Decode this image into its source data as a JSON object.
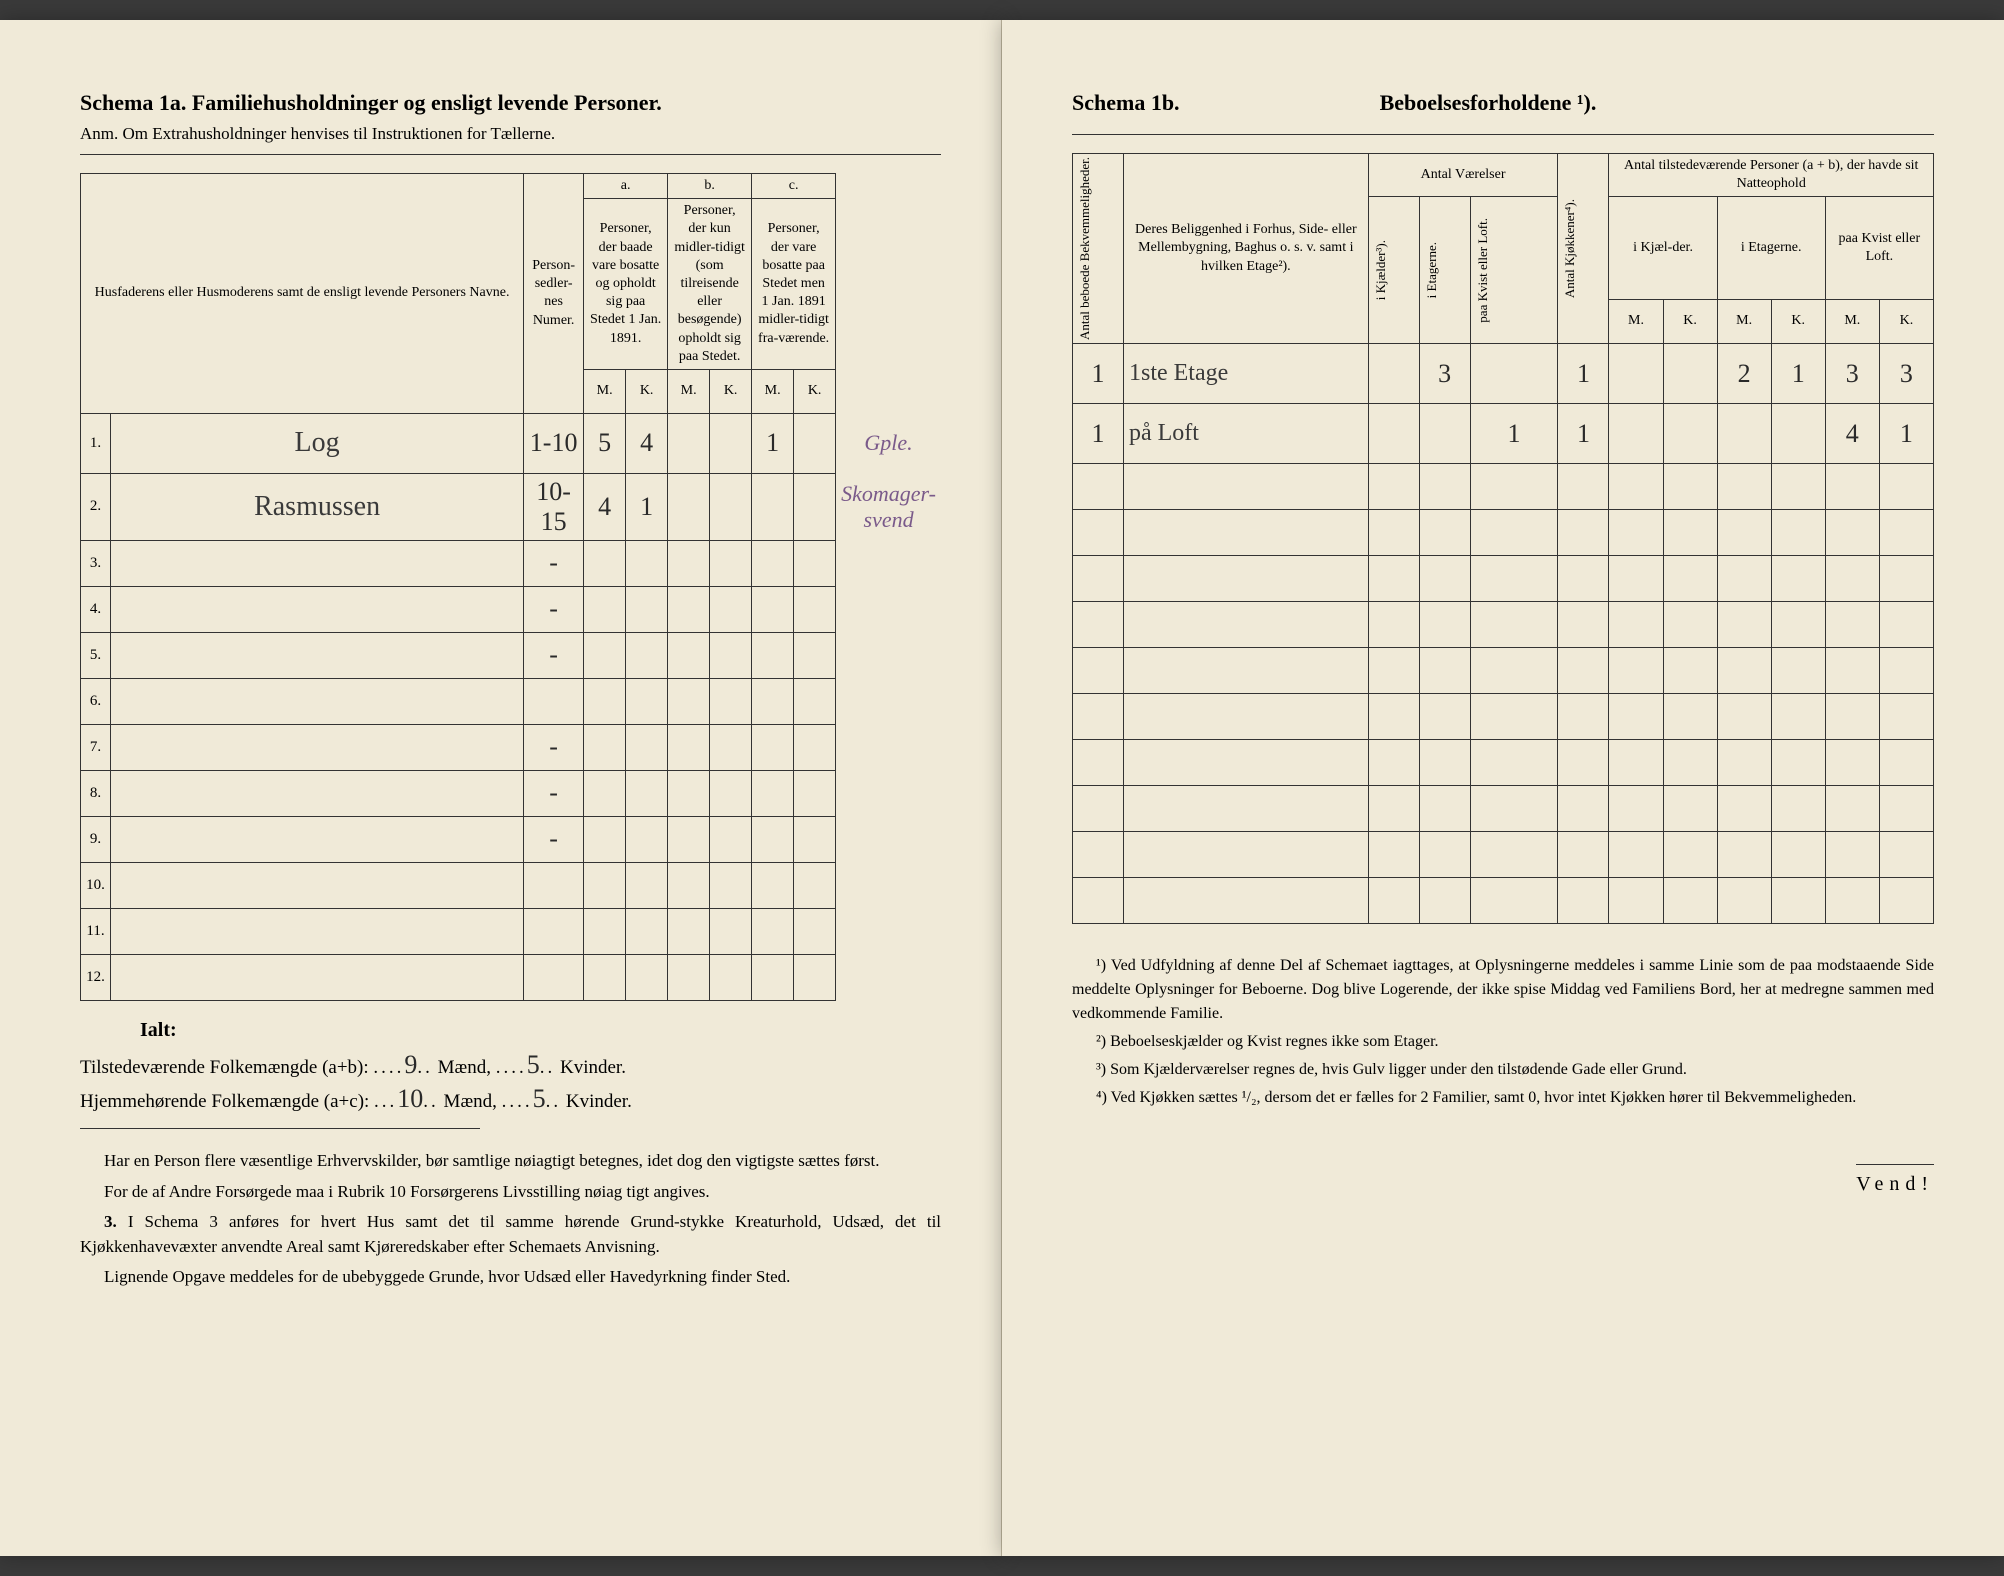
{
  "left": {
    "title": "Schema 1a.  Familiehusholdninger og ensligt levende Personer.",
    "subtitle": "Anm. Om Extrahusholdninger henvises til Instruktionen for Tællerne.",
    "columns": {
      "names": "Husfaderens eller Husmoderens samt de ensligt levende Personers Navne.",
      "numer": "Person-sedler-nes Numer.",
      "a_label": "a.",
      "a_text": "Personer, der baade vare bosatte og opholdt sig paa Stedet 1 Jan. 1891.",
      "b_label": "b.",
      "b_text": "Personer, der kun midler-tidigt (som tilreisende eller besøgende) opholdt sig paa Stedet.",
      "c_label": "c.",
      "c_text": "Personer, der vare bosatte paa Stedet men 1 Jan. 1891 midler-tidigt fra-værende.",
      "m": "M.",
      "k": "K."
    },
    "rows": [
      {
        "n": "1.",
        "name": "Log",
        "numer": "1-10",
        "am": "5",
        "ak": "4",
        "bm": "",
        "bk": "",
        "cm": "1",
        "ck": "",
        "note": "Gple."
      },
      {
        "n": "2.",
        "name": "Rasmussen",
        "numer": "10-15",
        "am": "4",
        "ak": "1",
        "bm": "",
        "bk": "",
        "cm": "",
        "ck": "",
        "note": "Skomager-svend"
      },
      {
        "n": "3.",
        "name": "",
        "numer": "-",
        "am": "",
        "ak": "",
        "bm": "",
        "bk": "",
        "cm": "",
        "ck": "",
        "note": ""
      },
      {
        "n": "4.",
        "name": "",
        "numer": "-",
        "am": "",
        "ak": "",
        "bm": "",
        "bk": "",
        "cm": "",
        "ck": "",
        "note": ""
      },
      {
        "n": "5.",
        "name": "",
        "numer": "-",
        "am": "",
        "ak": "",
        "bm": "",
        "bk": "",
        "cm": "",
        "ck": "",
        "note": ""
      },
      {
        "n": "6.",
        "name": "",
        "numer": "",
        "am": "",
        "ak": "",
        "bm": "",
        "bk": "",
        "cm": "",
        "ck": "",
        "note": ""
      },
      {
        "n": "7.",
        "name": "",
        "numer": "-",
        "am": "",
        "ak": "",
        "bm": "",
        "bk": "",
        "cm": "",
        "ck": "",
        "note": ""
      },
      {
        "n": "8.",
        "name": "",
        "numer": "-",
        "am": "",
        "ak": "",
        "bm": "",
        "bk": "",
        "cm": "",
        "ck": "",
        "note": ""
      },
      {
        "n": "9.",
        "name": "",
        "numer": "-",
        "am": "",
        "ak": "",
        "bm": "",
        "bk": "",
        "cm": "",
        "ck": "",
        "note": ""
      },
      {
        "n": "10.",
        "name": "",
        "numer": "",
        "am": "",
        "ak": "",
        "bm": "",
        "bk": "",
        "cm": "",
        "ck": "",
        "note": ""
      },
      {
        "n": "11.",
        "name": "",
        "numer": "",
        "am": "",
        "ak": "",
        "bm": "",
        "bk": "",
        "cm": "",
        "ck": "",
        "note": ""
      },
      {
        "n": "12.",
        "name": "",
        "numer": "",
        "am": "",
        "ak": "",
        "bm": "",
        "bk": "",
        "cm": "",
        "ck": "",
        "note": ""
      }
    ],
    "ialt": "Ialt:",
    "totals1_pre": "Tilstedeværende Folkemængde (a+b): ",
    "totals1_m": "9",
    "totals1_mid": " Mænd, ",
    "totals1_k": "5",
    "totals1_end": " Kvinder.",
    "totals2_pre": "Hjemmehørende Folkemængde (a+c): ",
    "totals2_m": "10",
    "totals2_k": "5",
    "footer": {
      "p1": "Har en Person flere væsentlige Erhvervskilder, bør samtlige nøiagtigt betegnes, idet dog den vigtigste sættes først.",
      "p2": "For de af Andre Forsørgede maa i Rubrik 10 Forsørgerens Livsstilling nøiag tigt angives.",
      "p3num": "3.",
      "p3": "I Schema 3 anføres for hvert Hus samt det til samme hørende Grund-stykke Kreaturhold, Udsæd, det til Kjøkkenhavevæxter anvendte Areal samt Kjøreredskaber efter Schemaets Anvisning.",
      "p4": "Lignende Opgave meddeles for de ubebyggede Grunde, hvor Udsæd eller Havedyrkning finder Sted."
    }
  },
  "right": {
    "title": "Schema 1b.",
    "heading": "Beboelsesforholdene ¹).",
    "columns": {
      "antal_bekvem": "Antal beboede Bekvemmeligheder.",
      "beliggenhed": "Deres Beliggenhed i Forhus, Side- eller Mellembygning, Baghus o. s. v. samt i hvilken Etage²).",
      "antal_vaer": "Antal Værelser",
      "i_kjael": "i Kjælder³).",
      "i_etag": "i Etagerne.",
      "paa_kvist": "paa Kvist eller Loft.",
      "antal_kjok": "Antal Kjøkkener⁴).",
      "tilstede": "Antal tilstedeværende Personer (a + b), der havde sit Natteophold",
      "i_kjael2": "i Kjæl-der.",
      "i_etag2": "i Etagerne.",
      "paa_kvist2": "paa Kvist eller Loft.",
      "m": "M.",
      "k": "K."
    },
    "rows": [
      {
        "bekvem": "1",
        "belig": "1ste Etage",
        "kj": "",
        "et": "3",
        "kv": "",
        "kjok": "1",
        "km": "",
        "kk": "",
        "em": "2",
        "ek": "1",
        "lm": "3",
        "lk": "3"
      },
      {
        "bekvem": "1",
        "belig": "på Loft",
        "kj": "",
        "et": "",
        "kv": "1",
        "kjok": "1",
        "km": "",
        "kk": "",
        "em": "",
        "ek": "",
        "lm": "4",
        "lk": "1"
      }
    ],
    "footnotes": {
      "f1": "¹) Ved Udfyldning af denne Del af Schemaet iagttages, at Oplysningerne meddeles i samme Linie som de paa modstaaende Side meddelte Oplysninger for Beboerne. Dog blive Logerende, der ikke spise Middag ved Familiens Bord, her at medregne sammen med vedkommende Familie.",
      "f2": "²) Beboelseskjælder og Kvist regnes ikke som Etager.",
      "f3": "³) Som Kjælderværelser regnes de, hvis Gulv ligger under den tilstødende Gade eller Grund.",
      "f4": "⁴) Ved Kjøkken sættes ¹/₂, dersom det er fælles for 2 Familier, samt 0, hvor intet Kjøkken hører til Bekvemmeligheden."
    },
    "vend": "Vend!"
  },
  "style": {
    "paper_bg": "#f0ead8",
    "ink": "#2a2a2a",
    "purple": "#7a5a8a",
    "border": "#333333",
    "font_body_pt": 15,
    "font_title_pt": 22,
    "font_hand_pt": 28
  }
}
